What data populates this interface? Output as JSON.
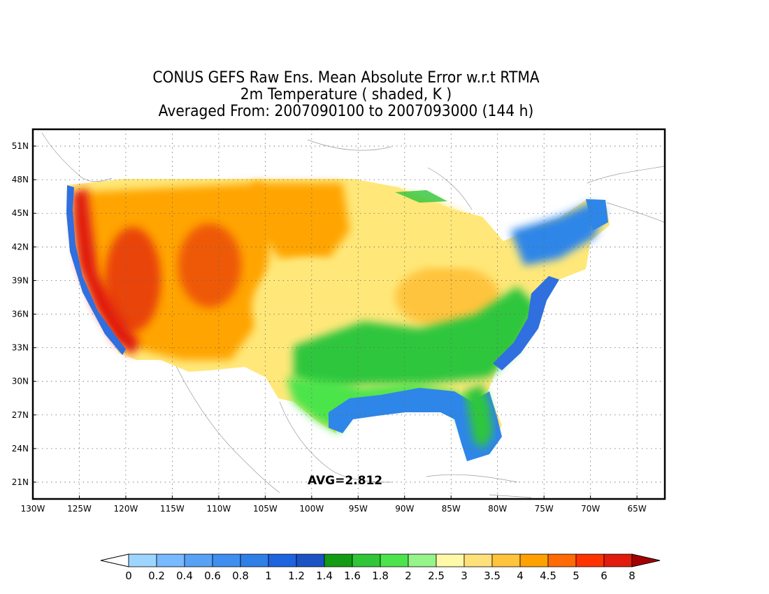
{
  "titles": {
    "line1": "CONUS GEFS Raw Ens. Mean Absolute Error w.r.t RTMA",
    "line2": "2m Temperature ( shaded, K )",
    "line3": "Averaged From: 2007090100 to 2007093000 (144 h)"
  },
  "annotation": {
    "avg_label": "AVG=2.812"
  },
  "map": {
    "lon_range": [
      -130,
      -62
    ],
    "lat_range": [
      19.5,
      52.5
    ],
    "lat_ticks": [
      {
        "value": 51,
        "label": "51N"
      },
      {
        "value": 48,
        "label": "48N"
      },
      {
        "value": 45,
        "label": "45N"
      },
      {
        "value": 42,
        "label": "42N"
      },
      {
        "value": 39,
        "label": "39N"
      },
      {
        "value": 36,
        "label": "36N"
      },
      {
        "value": 33,
        "label": "33N"
      },
      {
        "value": 30,
        "label": "30N"
      },
      {
        "value": 27,
        "label": "27N"
      },
      {
        "value": 24,
        "label": "24N"
      },
      {
        "value": 21,
        "label": "21N"
      }
    ],
    "lon_ticks": [
      {
        "value": -130,
        "label": "130W"
      },
      {
        "value": -125,
        "label": "125W"
      },
      {
        "value": -120,
        "label": "120W"
      },
      {
        "value": -115,
        "label": "115W"
      },
      {
        "value": -110,
        "label": "110W"
      },
      {
        "value": -105,
        "label": "105W"
      },
      {
        "value": -100,
        "label": "100W"
      },
      {
        "value": -95,
        "label": "95W"
      },
      {
        "value": -90,
        "label": "90W"
      },
      {
        "value": -85,
        "label": "85W"
      },
      {
        "value": -80,
        "label": "80W"
      },
      {
        "value": -75,
        "label": "75W"
      },
      {
        "value": -70,
        "label": "70W"
      },
      {
        "value": -65,
        "label": "65W"
      }
    ],
    "grid": true,
    "regions": [
      {
        "name": "west-coast",
        "color": "#e11c0c"
      },
      {
        "name": "intermountain-west",
        "color": "#ffa400"
      },
      {
        "name": "northern-plains",
        "color": "#ffa400"
      },
      {
        "name": "southern-plains",
        "color": "#ffe879"
      },
      {
        "name": "gulf-coast",
        "color": "#4ce44c"
      },
      {
        "name": "southeast",
        "color": "#2ec63e"
      },
      {
        "name": "ohio-valley",
        "color": "#ffc43c"
      },
      {
        "name": "great-lakes",
        "color": "#95f58b"
      },
      {
        "name": "northeast",
        "color": "#ffe879"
      },
      {
        "name": "gulf-of-mexico",
        "color": "#2e86e8"
      },
      {
        "name": "atlantic-coast",
        "color": "#2f6fe0"
      },
      {
        "name": "florida",
        "color": "#2ec63e"
      }
    ]
  },
  "colorbar": {
    "colors": [
      "#ffffff",
      "#9dd5ff",
      "#79b9ff",
      "#57a2f5",
      "#3e8ff0",
      "#2f7fe8",
      "#1e64e0",
      "#1c52c3",
      "#129b15",
      "#2fc637",
      "#4ce44c",
      "#96f48a",
      "#fff9a8",
      "#ffe17a",
      "#ffc43c",
      "#ffa100",
      "#ff6a05",
      "#ff3300",
      "#e11c0c",
      "#a50000"
    ],
    "labels": [
      "0",
      "0.2",
      "0.4",
      "0.6",
      "0.8",
      "1",
      "1.2",
      "1.4",
      "1.6",
      "1.8",
      "2",
      "2.5",
      "3",
      "3.5",
      "4",
      "4.5",
      "5",
      "6",
      "8"
    ]
  }
}
